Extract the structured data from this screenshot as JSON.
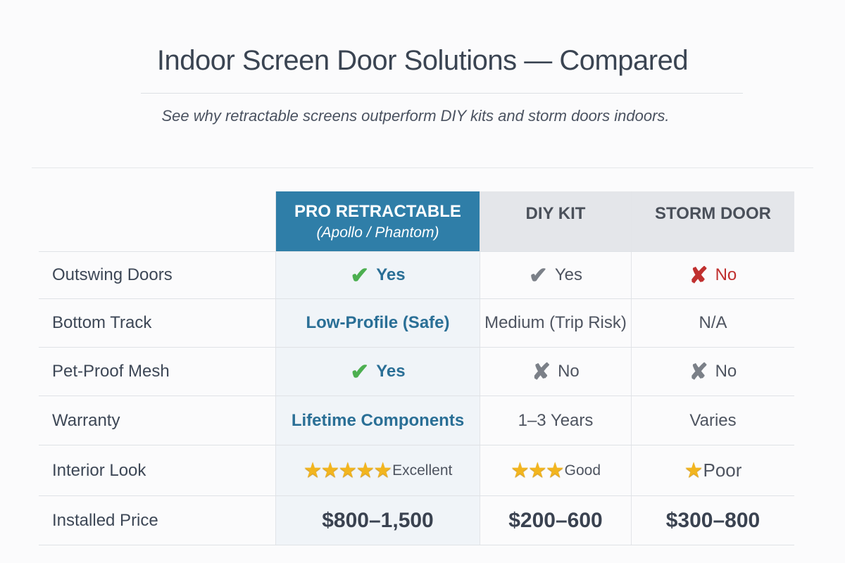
{
  "title": "Indoor Screen Door Solutions — Compared",
  "subtitle": "See why retractable screens outperform DIY kits and storm doors indoors.",
  "columns": [
    {
      "label": "PRO RETRACTABLE",
      "sublabel": "(Apollo / Phantom)"
    },
    {
      "label": "DIY KIT"
    },
    {
      "label": "STORM DOOR"
    }
  ],
  "colors": {
    "accent": "#2f7ea8",
    "check_green": "#4caf50",
    "cross_red": "#c0302f",
    "star": "#f2b51f"
  },
  "rows": [
    {
      "label": "Outswing Doors",
      "cells": [
        {
          "icon": "check-green",
          "text": "Yes"
        },
        {
          "icon": "check-gray",
          "text": "Yes"
        },
        {
          "icon": "cross-red",
          "text": "No"
        }
      ]
    },
    {
      "label": "Bottom Track",
      "cells": [
        {
          "text": "Low-Profile (Safe)"
        },
        {
          "text": "Medium (Trip Risk)"
        },
        {
          "text": "N/A"
        }
      ]
    },
    {
      "label": "Pet-Proof Mesh",
      "cells": [
        {
          "icon": "check-green",
          "text": "Yes"
        },
        {
          "icon": "cross-gray",
          "text": "No"
        },
        {
          "icon": "cross-gray",
          "text": "No"
        }
      ]
    },
    {
      "label": "Warranty",
      "cells": [
        {
          "text": "Lifetime Components"
        },
        {
          "text": "1–3 Years"
        },
        {
          "text": "Varies"
        }
      ]
    },
    {
      "label": "Interior Look",
      "cells": [
        {
          "stars": 5,
          "text": "Excellent"
        },
        {
          "stars": 3,
          "text": "Good"
        },
        {
          "stars": 1,
          "text": "Poor"
        }
      ]
    },
    {
      "label": "Installed Price",
      "cells": [
        {
          "text": "$800–1,500"
        },
        {
          "text": "$200–600"
        },
        {
          "text": "$300–800"
        }
      ]
    }
  ]
}
